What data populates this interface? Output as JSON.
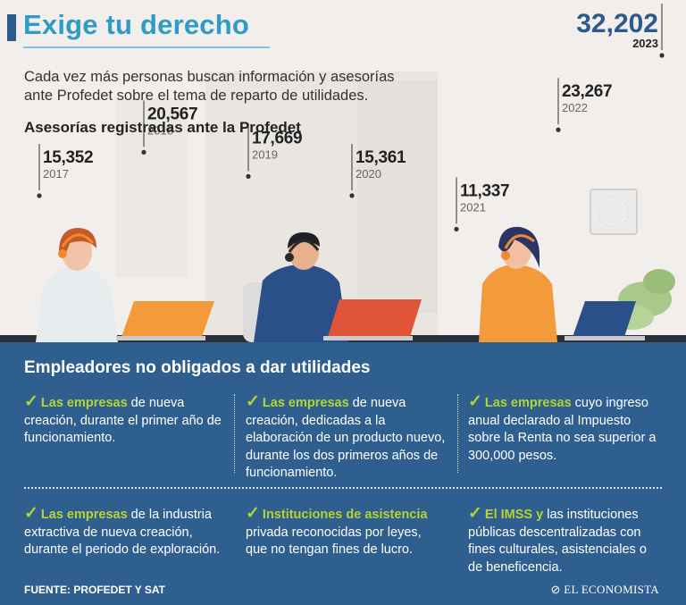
{
  "header": {
    "title": "Exige tu derecho",
    "subtitle": "Cada vez más personas buscan información y asesorías ante Profedet sobre el tema de reparto de utilidades."
  },
  "chart_data": {
    "type": "line",
    "title": "Asesorías registradas ante la Profedet",
    "xlabel": "",
    "ylabel": "",
    "categories": [
      "2017",
      "2018",
      "2019",
      "2020",
      "2021",
      "2022",
      "2023"
    ],
    "values": [
      15352,
      20567,
      17669,
      15361,
      11337,
      23267,
      32202
    ],
    "value_labels": [
      "15,352",
      "20,567",
      "17,669",
      "15,361",
      "11,337",
      "23,267",
      "32,202"
    ],
    "highlight": {
      "value_label": "32,202",
      "year": "2023"
    },
    "colors": {
      "highlight": "#2d5a8c",
      "markers": "#333333"
    }
  },
  "panel": {
    "title": "Empleadores no obligados a dar utilidades",
    "items": [
      {
        "highlight": "Las empresas",
        "text": " de nueva creación, durante el primer año de funcionamiento."
      },
      {
        "highlight": "Las empresas",
        "text": " de nueva creación, dedicadas a la elaboración de un producto nuevo, durante los dos primeros años de funcionamiento."
      },
      {
        "highlight": "Las empresas",
        "text": " cuyo ingreso anual declarado al Impuesto sobre la Renta no sea superior a 300,000 pesos."
      },
      {
        "highlight": "Las empresas",
        "text": " de la industria extractiva de nueva creación, durante el periodo de exploración."
      },
      {
        "highlight": "Instituciones de asistencia",
        "text": " privada reconocidas por leyes, que no tengan fines de lucro."
      },
      {
        "highlight": "El IMSS y",
        "text": " las instituciones públicas descentralizadas con fines culturales, asistenciales o de beneficencia."
      }
    ],
    "source": "FUENTE: PROFEDET Y SAT",
    "brand": "EL ECONOMISTA",
    "colors": {
      "panel_bg": "#2f5f8f",
      "accent_green": "#b5d334"
    }
  }
}
